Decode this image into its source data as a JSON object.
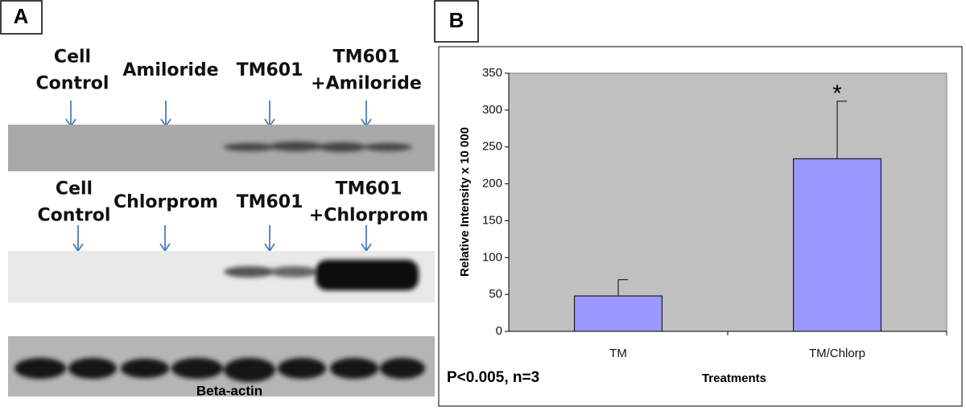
{
  "panel_a": {
    "label": "A",
    "rows": [
      {
        "lanes": [
          [
            "Cell",
            "Control"
          ],
          [
            "Amiloride"
          ],
          [
            "TM601"
          ],
          [
            "TM601",
            "+Amiloride"
          ]
        ]
      },
      {
        "lanes": [
          [
            "Cell",
            "Control"
          ],
          [
            "Chlorprom"
          ],
          [
            "TM601"
          ],
          [
            "TM601",
            "+Chlorprom"
          ]
        ]
      }
    ],
    "loading_control": "Beta-actin"
  },
  "chart_data": {
    "type": "bar",
    "panel_label": "B",
    "categories": [
      "TM",
      "TM/Chlorp"
    ],
    "values": [
      48,
      234
    ],
    "errors": [
      22,
      78
    ],
    "color": "#9999ff",
    "ylim": [
      0,
      350
    ],
    "yticks": [
      0,
      50,
      100,
      150,
      200,
      250,
      300,
      350
    ],
    "ylabel": "Relative Intensity x 10 000",
    "xlabel": "Treatments",
    "annotations": [
      "*",
      "P<0.005, n=3"
    ]
  }
}
